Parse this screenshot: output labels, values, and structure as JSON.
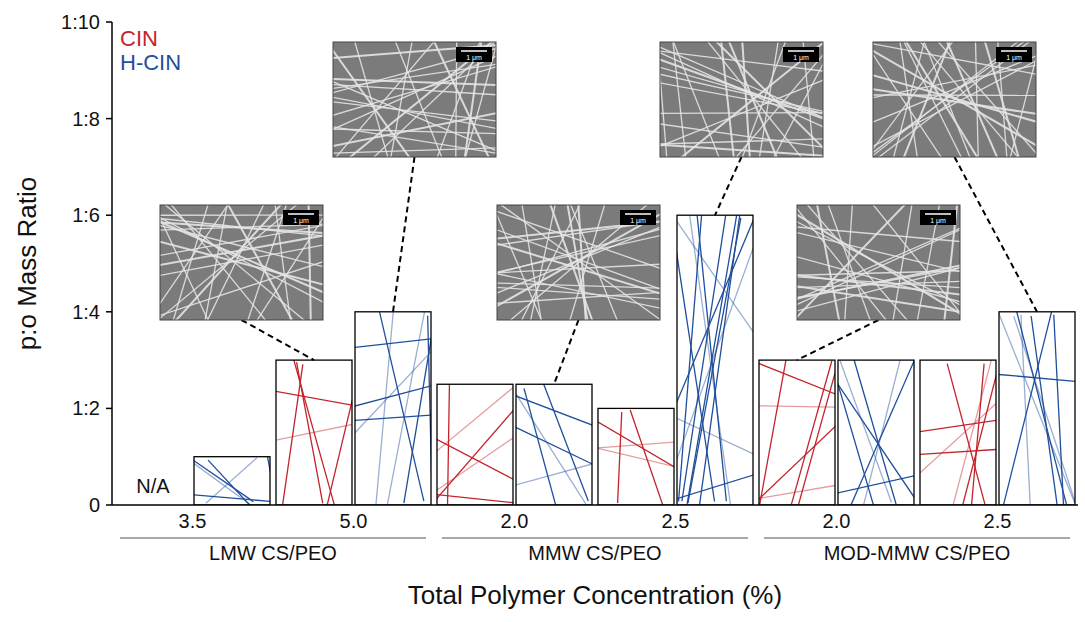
{
  "chart_data": {
    "type": "bar",
    "y_label": "p:o Mass Ratio",
    "x_label": "Total Polymer Concentration (%)",
    "categories": [
      "3.5",
      "5.0",
      "2.0",
      "2.5",
      "2.0",
      "2.5"
    ],
    "groups": [
      {
        "name": "LMW CS/PEO",
        "categories": [
          0,
          1
        ]
      },
      {
        "name": "MMW CS/PEO",
        "categories": [
          2,
          3
        ]
      },
      {
        "name": "MOD-MMW CS/PEO",
        "categories": [
          4,
          5
        ]
      }
    ],
    "series": [
      {
        "name": "CIN",
        "color": "#c3242b",
        "values": [
          null,
          3,
          2.5,
          2,
          3,
          3
        ],
        "value_labels": [
          "N/A",
          null,
          null,
          null,
          null,
          null
        ]
      },
      {
        "name": "H-CIN",
        "color": "#1f4e9b",
        "values": [
          1,
          4,
          2.5,
          6,
          3,
          4
        ]
      }
    ],
    "ylim": [
      0,
      10
    ],
    "yticks": [
      0,
      {
        "value": 2,
        "label": "1:2"
      },
      {
        "value": 4,
        "label": "1:4"
      },
      {
        "value": 6,
        "label": "1:6"
      },
      {
        "value": 8,
        "label": "1:8"
      },
      {
        "value": 10,
        "label": "1:10"
      }
    ],
    "legend": "top-left",
    "insets": [
      {
        "category": 1,
        "series": 0,
        "scale_bar": "1 μm"
      },
      {
        "category": 1,
        "series": 1,
        "scale_bar": "1 μm"
      },
      {
        "category": 2,
        "series": 1,
        "scale_bar": "1 μm"
      },
      {
        "category": 3,
        "series": 1,
        "scale_bar": "1 μm"
      },
      {
        "category": 4,
        "series": 0,
        "scale_bar": "1 μm"
      },
      {
        "category": 5,
        "series": 1,
        "scale_bar": "1 μm"
      }
    ]
  }
}
